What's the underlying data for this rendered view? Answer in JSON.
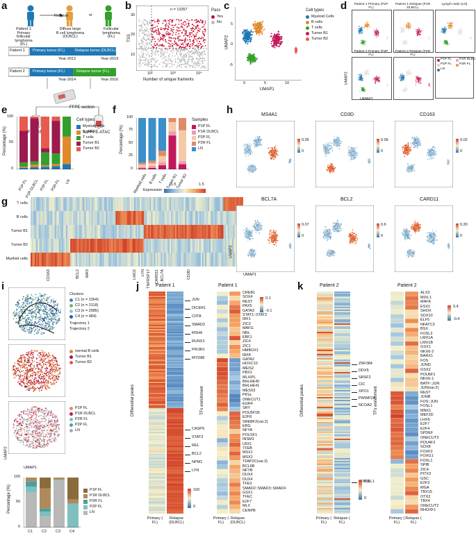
{
  "panels": {
    "a": {
      "label": "a",
      "figures": [
        "Patient 1 Primary follicular lymphoma (FL)",
        "Diffuse large B cell lymphoma (DLBCL)",
        "Follicular lymphoma (FL)"
      ],
      "relapse": "Relapse",
      "or": "or",
      "patient1": {
        "name": "Patient 1",
        "primary": "Primary tumor (FL)",
        "relapse": "Relapse tumor (DLBCL)",
        "y1": "Year-2012",
        "y2": "Year-2019"
      },
      "patient2": {
        "name": "Patient 2",
        "primary": "Primary tumor (FL)",
        "relapse": "Relapse tumor (FL)",
        "y1": "Year-2014",
        "y2": "Year-2016"
      },
      "ffpe": "FFPE section",
      "assay": "scFFPE-ATAC",
      "colors": {
        "primary": "#1f78b4",
        "relapse": "#33a02c",
        "dlbcl": "#e0a040"
      }
    },
    "b": {
      "label": "b",
      "n": "n = 13357",
      "legend_title": "Pass",
      "yes": "Yes",
      "no": "No",
      "ylabel": "TSS",
      "xlabel": "Number of unique framents",
      "xticks": [
        "10²",
        "10³",
        "10⁴"
      ],
      "yticks": [
        "10",
        "20",
        "30"
      ]
    },
    "c": {
      "label": "c",
      "xlabel": "UMAP1",
      "ylabel": "UMAP2",
      "legend_title": "Cell types",
      "legend": [
        {
          "name": "Myeloid Cells",
          "color": "#1f78b4"
        },
        {
          "name": "B cells",
          "color": "#e08a2c"
        },
        {
          "name": "T cells",
          "color": "#33a02c"
        },
        {
          "name": "Tumor B1",
          "color": "#c2185b"
        },
        {
          "name": "Tumor B2",
          "color": "#e85a4f"
        }
      ],
      "xticks": [
        "0",
        "5",
        "10"
      ],
      "yticks": [
        "-5",
        "0",
        "5"
      ]
    },
    "d": {
      "label": "d",
      "titles": [
        "Patient 1 Primary (P1P FL)",
        "Patient 1 Relapse (P1R DLBCL)",
        "Lymph node (LN)",
        "Patient 2 Primary (P2P FL)",
        "Patient 2 Relapse (P2R FL)"
      ],
      "legend": [
        "P1P FL",
        "P1R DLBCL",
        "P2P FL",
        "P2R FL",
        "LN"
      ],
      "xlabel": "UMAP1",
      "ylabel": "UMAP2"
    },
    "e": {
      "label": "e",
      "ylabel": "Percentage (%)",
      "legend_title": "Cell types",
      "legend": [
        "Myeloid cells",
        "B cells",
        "T cells",
        "Tumor B1",
        "Tumor B2"
      ],
      "categories": [
        "P1P FL",
        "P1R DLBCL",
        "P2P FL",
        "P2R FL",
        "LN"
      ],
      "yticks": [
        "0",
        "50",
        "100"
      ]
    },
    "f": {
      "label": "f",
      "ylabel": "Percentage (%)",
      "legend_title": "Samples",
      "legend": [
        "P1P FL",
        "P1R DLBCL",
        "P2P FL",
        "P2R FL",
        "LN"
      ],
      "categories": [
        "Myeloid cells",
        "B cells",
        "T cells",
        "Tumor B1",
        "Tumor B2"
      ],
      "yticks": [
        "0",
        "25",
        "50",
        "75",
        "100"
      ]
    },
    "g": {
      "label": "g",
      "expression": "Expression",
      "scale": [
        "-1.5",
        "1.5"
      ],
      "rows": [
        "T cells",
        "B cells",
        "Tumor B1",
        "Tumor B2",
        "Myeloid cells"
      ],
      "genes": [
        "CD163",
        "BCL2",
        "WAS",
        "LMO2",
        "LYN",
        "TNFRSF17",
        "CARD11",
        "BCL7A",
        "CD3D"
      ]
    },
    "h": {
      "label": "h",
      "genes": [
        "MS4A1",
        "CD3D",
        "CD163",
        "BCL7A",
        "BCL2",
        "CARD11"
      ],
      "scales": [
        "0.05",
        "0.06",
        "0.02",
        "0.07",
        "0.6",
        "0.20"
      ],
      "zero": "0",
      "xlabel": "UMAP1",
      "ylabel": "UMAP2"
    },
    "i": {
      "label": "i",
      "clusters_title": "Clusters",
      "clusters": [
        "C1 (n = 2364)",
        "C2 (n = 2118)",
        "C3 (n = 2985)",
        "C4 (n = 484)"
      ],
      "traj1": "Trajectory 1",
      "traj2": "Trajectory 2",
      "types": [
        "normal B cells",
        "Tumor B1",
        "Tumor B2"
      ],
      "samples": [
        "P1P FL",
        "P1R DLBCL",
        "P2R FL",
        "P2P FL",
        "LN"
      ],
      "xlabel": "UMAP1",
      "ylabel": "UMAP2",
      "bar_ylabel": "Percentage (%)",
      "bar_cats": [
        "C1",
        "C2",
        "C3",
        "C4"
      ],
      "bar_yticks": [
        "0",
        "50",
        "100"
      ]
    },
    "j": {
      "label": "j",
      "title": "Patient 1",
      "title2": "Patient 1",
      "ylabel": "Differential peaks",
      "ylabel2": "TFs enrichment",
      "genes": [
        "JUN",
        "DICER1",
        "CIITA",
        "SMAD2",
        "MSH6",
        "RUNX1",
        "PIK3R1",
        "MYD88",
        "CASP9",
        "STAT3",
        "REL",
        "BCL2",
        "NPM1",
        "LYN"
      ],
      "tfs": [
        "CREB1",
        "SOX4",
        "REST",
        "PAX5",
        "GATA3",
        "STAT1::STAT2",
        "IRF1",
        "ZIC3",
        "MAFG",
        "NRL",
        "EBF1",
        "ZIC4",
        "ZIC1",
        "HMBOX1",
        "IRF8",
        "GATA2",
        "HOXC10",
        "MEIS2",
        "PBX1",
        "MLXIPL",
        "BHLHE40",
        "BHLHE41",
        "MESS3",
        "Ptf1a",
        "ONECUT1",
        "EGR4",
        "SRY",
        "POU5F1B",
        "E2F8",
        "SREBF2(var.2)",
        "ERG",
        "NFYA",
        "POU1F1",
        "INSM1",
        "LBX1",
        "TFEB",
        "MSX1",
        "MSX2",
        "TFAP2C(var.3)",
        "BCL6B",
        "NFYB",
        "DUX4",
        "DUX4",
        "TFE3",
        "SMAD2::SMAD3::SMAD4",
        "GSX1",
        "TFEC",
        "E2F7",
        "MLX",
        "CENPB"
      ],
      "scale1": [
        "100",
        "0"
      ],
      "scale2": [
        "0.1",
        "-0.1"
      ],
      "xcats": [
        "Primary ( FL)",
        "Relapse (DLBCL)"
      ]
    },
    "k": {
      "label": "k",
      "title": "Patient 2",
      "title2": "Patient 2",
      "ylabel": "Differential peaks",
      "ylabel2": "TFs enrichment",
      "genes": [
        "ZNF384",
        "DDX5",
        "SRSF2",
        "CIC",
        "XPO1",
        "PWWP2A",
        "NCOA2",
        "ZFP36L1"
      ],
      "tfs": [
        "ALX3",
        "MIXL1",
        "MAFK",
        "ESX1",
        "SHOX",
        "SOX10",
        "ELF5",
        "NFATC3",
        "BSX",
        "FOSL2",
        "LMX1A",
        "LMX1B",
        "GSX1",
        "NKX6-2",
        "BARX1",
        "FOS",
        "JUND",
        "GSX2",
        "POU6F1",
        "NKX6-1",
        "BATF::JUN",
        "JUN(var.2)",
        "REST",
        "JUNB",
        "FOS::JUN",
        "FOSL1",
        "MNX1",
        "MEF2D",
        "LHX6",
        "E2F7",
        "E2F4",
        "SPDEF",
        "ONECUT3",
        "POU4F2",
        "SOX8",
        "FOXF2",
        "FOXG1",
        "FOXL1",
        "SPIB",
        "ZIC4",
        "PITX3",
        "GSC",
        "E2F3",
        "MGA",
        "TBX15",
        "OTX2",
        "TBX4",
        "ONECUT2",
        "RHOXF1"
      ],
      "scale1": [
        "0.3",
        "0"
      ],
      "scale2": [
        "0.4",
        "-0.4"
      ],
      "xcats": [
        "Primary ( FL)",
        "Relapse ( FL)"
      ]
    }
  }
}
